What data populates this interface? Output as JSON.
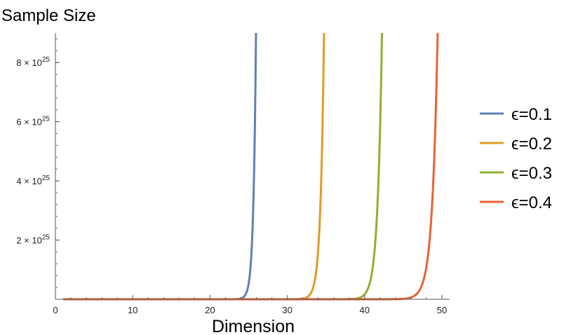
{
  "chart_data": {
    "type": "line",
    "title": "Sample Size",
    "xlabel": "Dimension",
    "ylabel": "",
    "xlim": [
      0,
      51
    ],
    "ylim": [
      0,
      9e+25
    ],
    "x_ticks": [
      0,
      10,
      20,
      30,
      40,
      50
    ],
    "x_minor_step": 2,
    "y_ticks": [
      {
        "value": 2e+25,
        "mantissa": "2",
        "exponent": "25"
      },
      {
        "value": 4e+25,
        "mantissa": "4",
        "exponent": "25"
      },
      {
        "value": 6e+25,
        "mantissa": "6",
        "exponent": "25"
      },
      {
        "value": 8e+25,
        "mantissa": "8",
        "exponent": "25"
      }
    ],
    "y_tick_times": " × 10",
    "grid": false,
    "legend_position": "right",
    "series": [
      {
        "name": "ϵ=0.1",
        "color": "#5e81b5",
        "x_start": 1,
        "x_end": 25.95,
        "rise_start": 23.6
      },
      {
        "name": "ϵ=0.2",
        "color": "#e19c24",
        "x_start": 1,
        "x_end": 34.75,
        "rise_start": 31.6
      },
      {
        "name": "ϵ=0.3",
        "color": "#8fb032",
        "x_start": 1,
        "x_end": 42.25,
        "rise_start": 38.3
      },
      {
        "name": "ϵ=0.4",
        "color": "#eb6235",
        "x_start": 1,
        "x_end": 49.45,
        "rise_start": 44.6
      }
    ]
  }
}
